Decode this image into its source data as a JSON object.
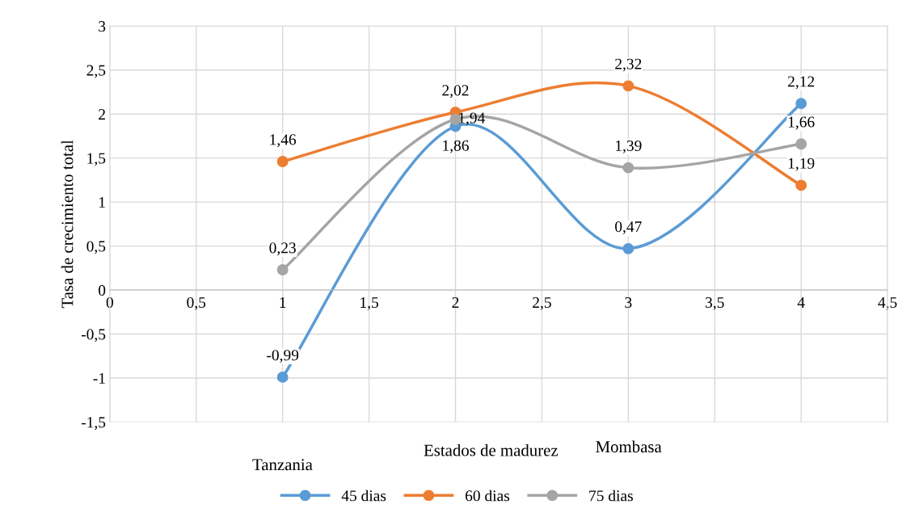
{
  "chart_data": {
    "type": "line",
    "xlabel": "Estados de madurez",
    "ylabel": "Tasa de crecimiento total",
    "x": [
      1,
      2,
      3,
      4
    ],
    "series": [
      {
        "name": "45 dias",
        "color": "#5b9bd5",
        "values": [
          -0.99,
          1.86,
          0.47,
          2.12
        ],
        "value_labels": [
          "-0,99",
          "1,86",
          "0,47",
          "2,12"
        ]
      },
      {
        "name": "60 dias",
        "color": "#ed7d31",
        "values": [
          1.46,
          2.02,
          2.32,
          1.19
        ],
        "value_labels": [
          "1,46",
          "2,02",
          "2,32",
          "1,19"
        ]
      },
      {
        "name": "75 dias",
        "color": "#a5a5a5",
        "values": [
          0.23,
          1.94,
          1.39,
          1.66
        ],
        "value_labels": [
          "0,23",
          "1,94",
          "1,39",
          "1,66"
        ]
      }
    ],
    "xlim": [
      0,
      4.5
    ],
    "xticks": [
      0,
      {
        "value": 0.5,
        "label": "0,5"
      },
      1,
      {
        "value": 1.5,
        "label": "1,5"
      },
      2,
      {
        "value": 2.5,
        "label": "2,5"
      },
      3,
      {
        "value": 3.5,
        "label": "3,5"
      },
      4,
      {
        "value": 4.5,
        "label": "4,5"
      }
    ],
    "ylim": [
      -1.5,
      3
    ],
    "yticks": [
      {
        "value": -1.5,
        "label": "-1,5"
      },
      -1,
      {
        "value": -0.5,
        "label": "-0,5"
      },
      0,
      {
        "value": 0.5,
        "label": "0,5"
      },
      1,
      {
        "value": 1.5,
        "label": "1,5"
      },
      2,
      {
        "value": 2.5,
        "label": "2,5"
      },
      3
    ],
    "annotations": [
      "Tanzania",
      "Mombasa"
    ],
    "grid": true,
    "legend": "bottom",
    "marker": "circle",
    "line_style": "solid"
  }
}
